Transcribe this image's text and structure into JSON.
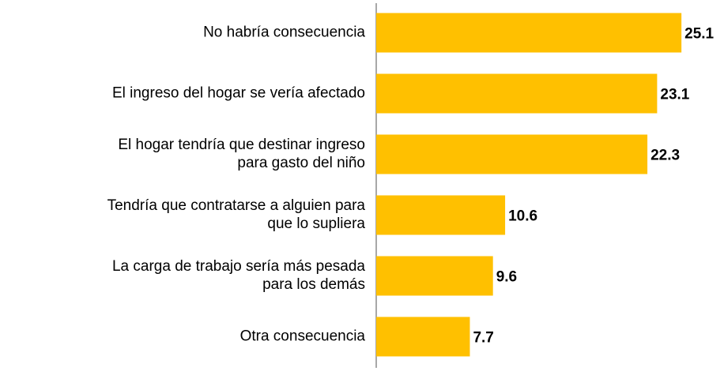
{
  "chart_data": {
    "type": "barh",
    "categories": [
      "No habría consecuencia",
      "El ingreso del hogar se vería afectado",
      "El hogar tendría que destinar ingreso\npara gasto del niño",
      "Tendría que contratarse a alguien para\nque lo supliera",
      "La carga de trabajo sería más pesada\npara los demás",
      "Otra consecuencia"
    ],
    "values": [
      25.1,
      23.1,
      22.3,
      10.6,
      9.6,
      7.7
    ],
    "color": "#FFC000",
    "xlim": [
      0,
      28.6
    ]
  }
}
